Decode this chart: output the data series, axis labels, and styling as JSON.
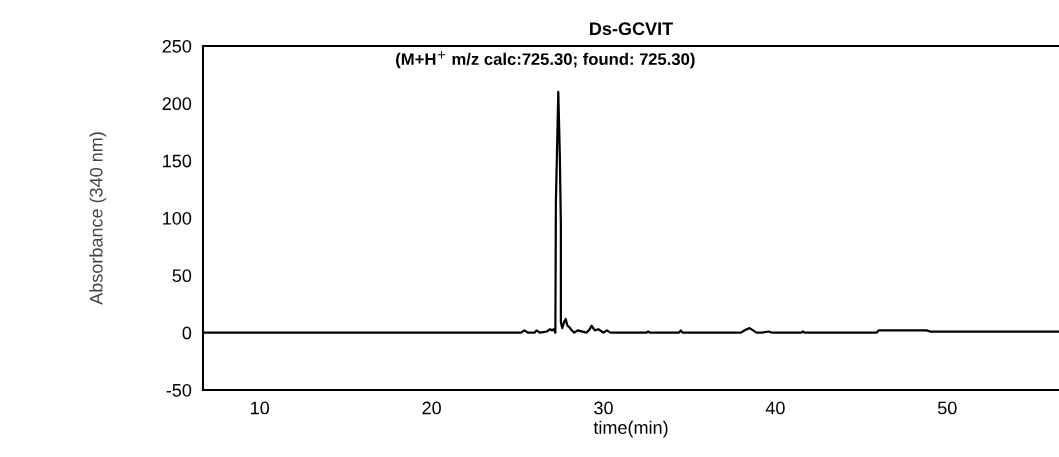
{
  "chart_data": {
    "type": "line",
    "title": "Ds-GCVIT",
    "xlabel": "time(min)",
    "ylabel": "Absorbance (340 nm)",
    "annotations": [
      "(M+H$^{+}$ m/z calc:725.30; found: 725.30)"
    ],
    "series": [
      {
        "color": "#000000",
        "x": [
          6.7,
          25.2,
          25.4,
          25.6,
          26.0,
          26.1,
          26.3,
          26.7,
          26.9,
          27.0,
          27.1,
          27.2,
          27.23,
          27.37,
          27.46,
          27.52,
          27.52,
          27.6,
          27.7,
          27.8,
          27.9,
          28.0,
          28.1,
          28.3,
          28.5,
          29.0,
          29.2,
          29.3,
          29.5,
          29.7,
          30.0,
          30.2,
          30.4,
          30.6,
          32.5,
          32.6,
          32.7,
          34.4,
          34.5,
          34.6,
          38.0,
          38.2,
          38.5,
          38.9,
          39.2,
          39.6,
          39.8,
          40.0,
          41.5,
          41.6,
          41.7,
          45.9,
          46.0,
          46.5,
          46.9,
          47.5,
          47.8,
          48.5,
          48.8,
          49.0,
          49.2,
          56.5
        ],
        "values": [
          0,
          0,
          2,
          0,
          0,
          2,
          0,
          1,
          3,
          2,
          3,
          0,
          114,
          210,
          154,
          93,
          9,
          4,
          9,
          12,
          6,
          5,
          3,
          0,
          2,
          0,
          3,
          6,
          2,
          3,
          0,
          2,
          0,
          0,
          0,
          1,
          0,
          0,
          2,
          0,
          0,
          2,
          4,
          0,
          0,
          1,
          0,
          0,
          0,
          1,
          0,
          0,
          2,
          2,
          2,
          2,
          2,
          2,
          2,
          1,
          1,
          1
        ]
      }
    ],
    "xlim": [
      6.7,
      56.5
    ],
    "xticks": [
      10,
      20,
      30,
      40,
      50
    ],
    "ylim": [
      -50,
      250
    ],
    "yticks": [
      -50,
      0,
      50,
      100,
      150,
      200,
      250
    ],
    "grid": false,
    "marker": "none",
    "line_style": "solid"
  }
}
